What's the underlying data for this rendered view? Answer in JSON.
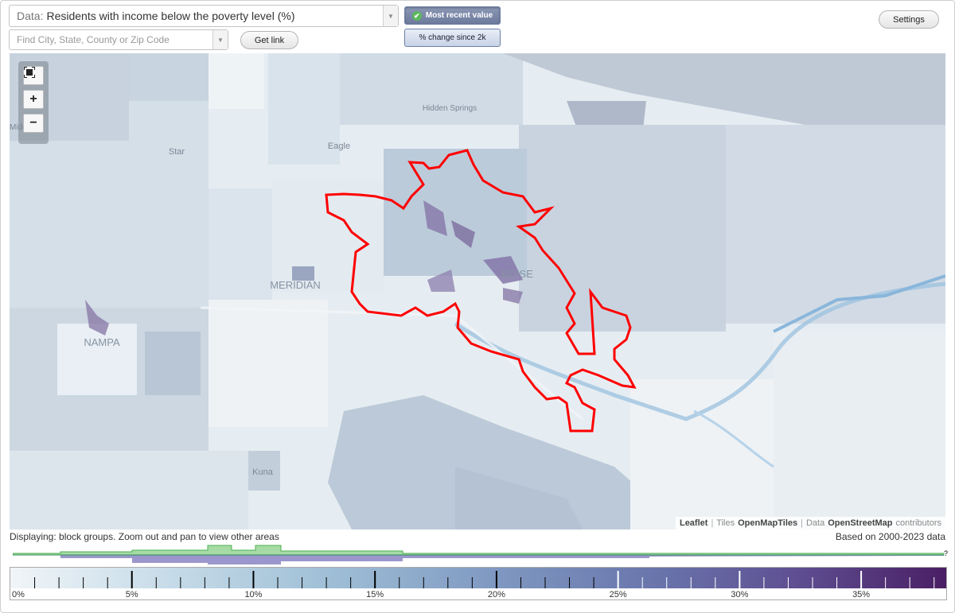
{
  "controls": {
    "data_prefix": "Data:",
    "data_value": "Residents with income below the poverty level (%)",
    "search_placeholder": "Find City, State, County or Zip Code",
    "get_link_label": "Get link",
    "settings_label": "Settings",
    "toggle_most_recent": "Most recent value",
    "toggle_change": "% change since 2k"
  },
  "map": {
    "place_labels": [
      "Hidden Springs",
      "Eagle",
      "Star",
      "MERIDIAN",
      "BOISE",
      "NAMPA",
      "Kuna",
      "Middleton"
    ],
    "zoom_controls": [
      "fullscreen",
      "zoom-in",
      "zoom-out"
    ],
    "attribution": {
      "leaflet": "Leaflet",
      "tiles_prefix": "Tiles",
      "tiles_name": "OpenMapTiles",
      "data_prefix": "Data",
      "data_name": "OpenStreetMap",
      "contributors": "contributors"
    }
  },
  "status": {
    "displaying": "Displaying: block groups. Zoom out and pan to view other areas",
    "based_on": "Based on 2000-2023 data",
    "histogram_end_mark": "?"
  },
  "legend": {
    "tick_labels": [
      "0%",
      "5%",
      "10%",
      "15%",
      "20%",
      "25%",
      "30%",
      "35%"
    ],
    "min": 0,
    "max": 38.5,
    "colors": [
      "#f0f5f8",
      "#c6dbe8",
      "#9fbfd6",
      "#7f98c1",
      "#6a77ad",
      "#5e4f91",
      "#4a1e64"
    ]
  },
  "colors": {
    "boundary": "#ff0000",
    "histogram_green": "#7ccd7c",
    "histogram_purple": "#9b97cc"
  }
}
